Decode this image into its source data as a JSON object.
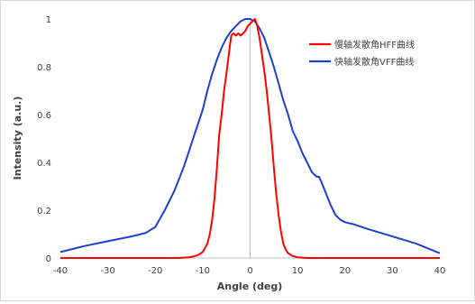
{
  "chart_data": {
    "type": "line",
    "title": "",
    "xlabel": "Angle (deg)",
    "ylabel": "Intensity (a.u.)",
    "xlim": [
      -40,
      40
    ],
    "ylim": [
      0,
      1
    ],
    "x_ticks": [
      -40,
      -30,
      -20,
      -10,
      0,
      10,
      20,
      30,
      40
    ],
    "y_ticks": [
      0,
      0.2,
      0.4,
      0.6,
      0.8,
      1
    ],
    "y_tick_labels": [
      "0",
      "0.2",
      "0.4",
      "0.6",
      "0.8",
      "1"
    ],
    "grid": "none",
    "legend_position": "top-right",
    "colors": {
      "hff": "#ff0000",
      "vff": "#1f3fd0",
      "axis": "#bfbfbf",
      "text": "#404040"
    },
    "series": [
      {
        "name": "慢轴发散角HFF曲线",
        "color": "#ff0000",
        "x": [
          -40,
          -20,
          -15,
          -13,
          -12,
          -11,
          -10,
          -9,
          -8.5,
          -8,
          -7.5,
          -7,
          -6.5,
          -6,
          -5.5,
          -5,
          -4.5,
          -4,
          -3.5,
          -3,
          -2.5,
          -2,
          -1.5,
          -1,
          -0.5,
          0,
          0.5,
          1,
          1.5,
          2,
          2.5,
          3,
          3.5,
          4,
          4.5,
          5,
          5.5,
          6,
          6.5,
          7,
          7.5,
          8,
          9,
          10,
          12,
          20,
          40
        ],
        "y": [
          0,
          0,
          0,
          0.003,
          0.006,
          0.012,
          0.025,
          0.06,
          0.1,
          0.16,
          0.25,
          0.38,
          0.52,
          0.6,
          0.7,
          0.77,
          0.85,
          0.93,
          0.94,
          0.93,
          0.94,
          0.93,
          0.94,
          0.95,
          0.97,
          0.98,
          0.99,
          1.0,
          0.97,
          0.92,
          0.85,
          0.78,
          0.7,
          0.6,
          0.5,
          0.38,
          0.27,
          0.18,
          0.11,
          0.06,
          0.035,
          0.02,
          0.008,
          0.003,
          0,
          0,
          0
        ]
      },
      {
        "name": "快轴发散角VFF曲线",
        "color": "#1f3fd0",
        "x": [
          -40,
          -35,
          -30,
          -25,
          -22,
          -20,
          -18,
          -16,
          -15,
          -14,
          -13,
          -12,
          -11,
          -10,
          -9,
          -8,
          -7,
          -6,
          -5,
          -4,
          -3,
          -2,
          -1,
          0,
          1,
          2,
          3,
          4,
          5,
          6,
          7,
          8,
          9,
          10,
          11,
          12,
          13,
          13.5,
          14,
          14.5,
          15,
          16,
          17,
          18,
          19,
          20,
          22,
          25,
          30,
          35,
          40
        ],
        "y": [
          0.025,
          0.05,
          0.07,
          0.09,
          0.105,
          0.13,
          0.2,
          0.28,
          0.33,
          0.38,
          0.44,
          0.5,
          0.56,
          0.62,
          0.7,
          0.77,
          0.83,
          0.88,
          0.92,
          0.95,
          0.97,
          0.99,
          1.0,
          1.0,
          0.99,
          0.96,
          0.92,
          0.86,
          0.8,
          0.73,
          0.66,
          0.6,
          0.53,
          0.49,
          0.44,
          0.4,
          0.36,
          0.35,
          0.34,
          0.34,
          0.32,
          0.27,
          0.22,
          0.18,
          0.16,
          0.15,
          0.14,
          0.12,
          0.09,
          0.06,
          0.02
        ]
      }
    ]
  }
}
